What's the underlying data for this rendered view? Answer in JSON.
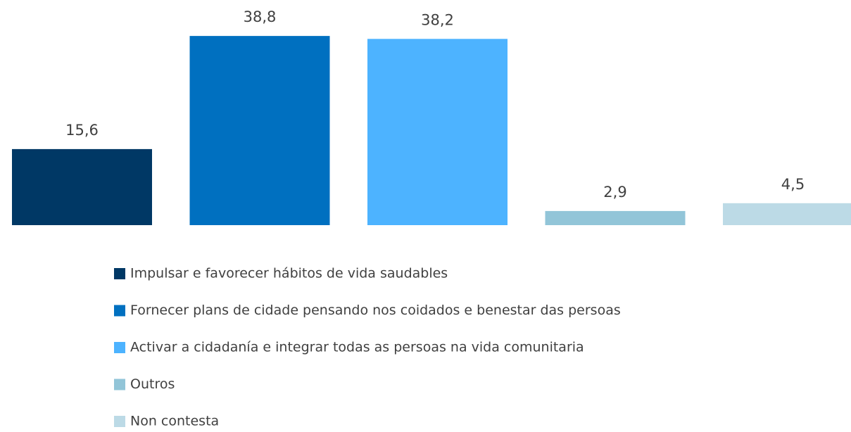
{
  "chart_data": {
    "type": "bar",
    "series": [
      {
        "name": "Impulsar e favorecer hábitos de vida saudables",
        "color": "#003865",
        "values": [
          15.6
        ],
        "value_labels": [
          "15,6"
        ]
      },
      {
        "name": "Fornecer plans de cidade pensando nos coidados e benestar das persoas",
        "color": "#0070c0",
        "values": [
          38.8
        ],
        "value_labels": [
          "38,8"
        ]
      },
      {
        "name": "Activar a cidadanía e integrar todas as persoas na vida comunitaria",
        "color": "#4db3ff",
        "values": [
          38.2
        ],
        "value_labels": [
          "38,2"
        ]
      },
      {
        "name": "Outros",
        "color": "#92c5d8",
        "values": [
          2.9
        ],
        "value_labels": [
          "2,9"
        ]
      },
      {
        "name": "Non contesta",
        "color": "#bcdae6",
        "values": [
          4.5
        ],
        "value_labels": [
          "4,5"
        ]
      }
    ]
  }
}
